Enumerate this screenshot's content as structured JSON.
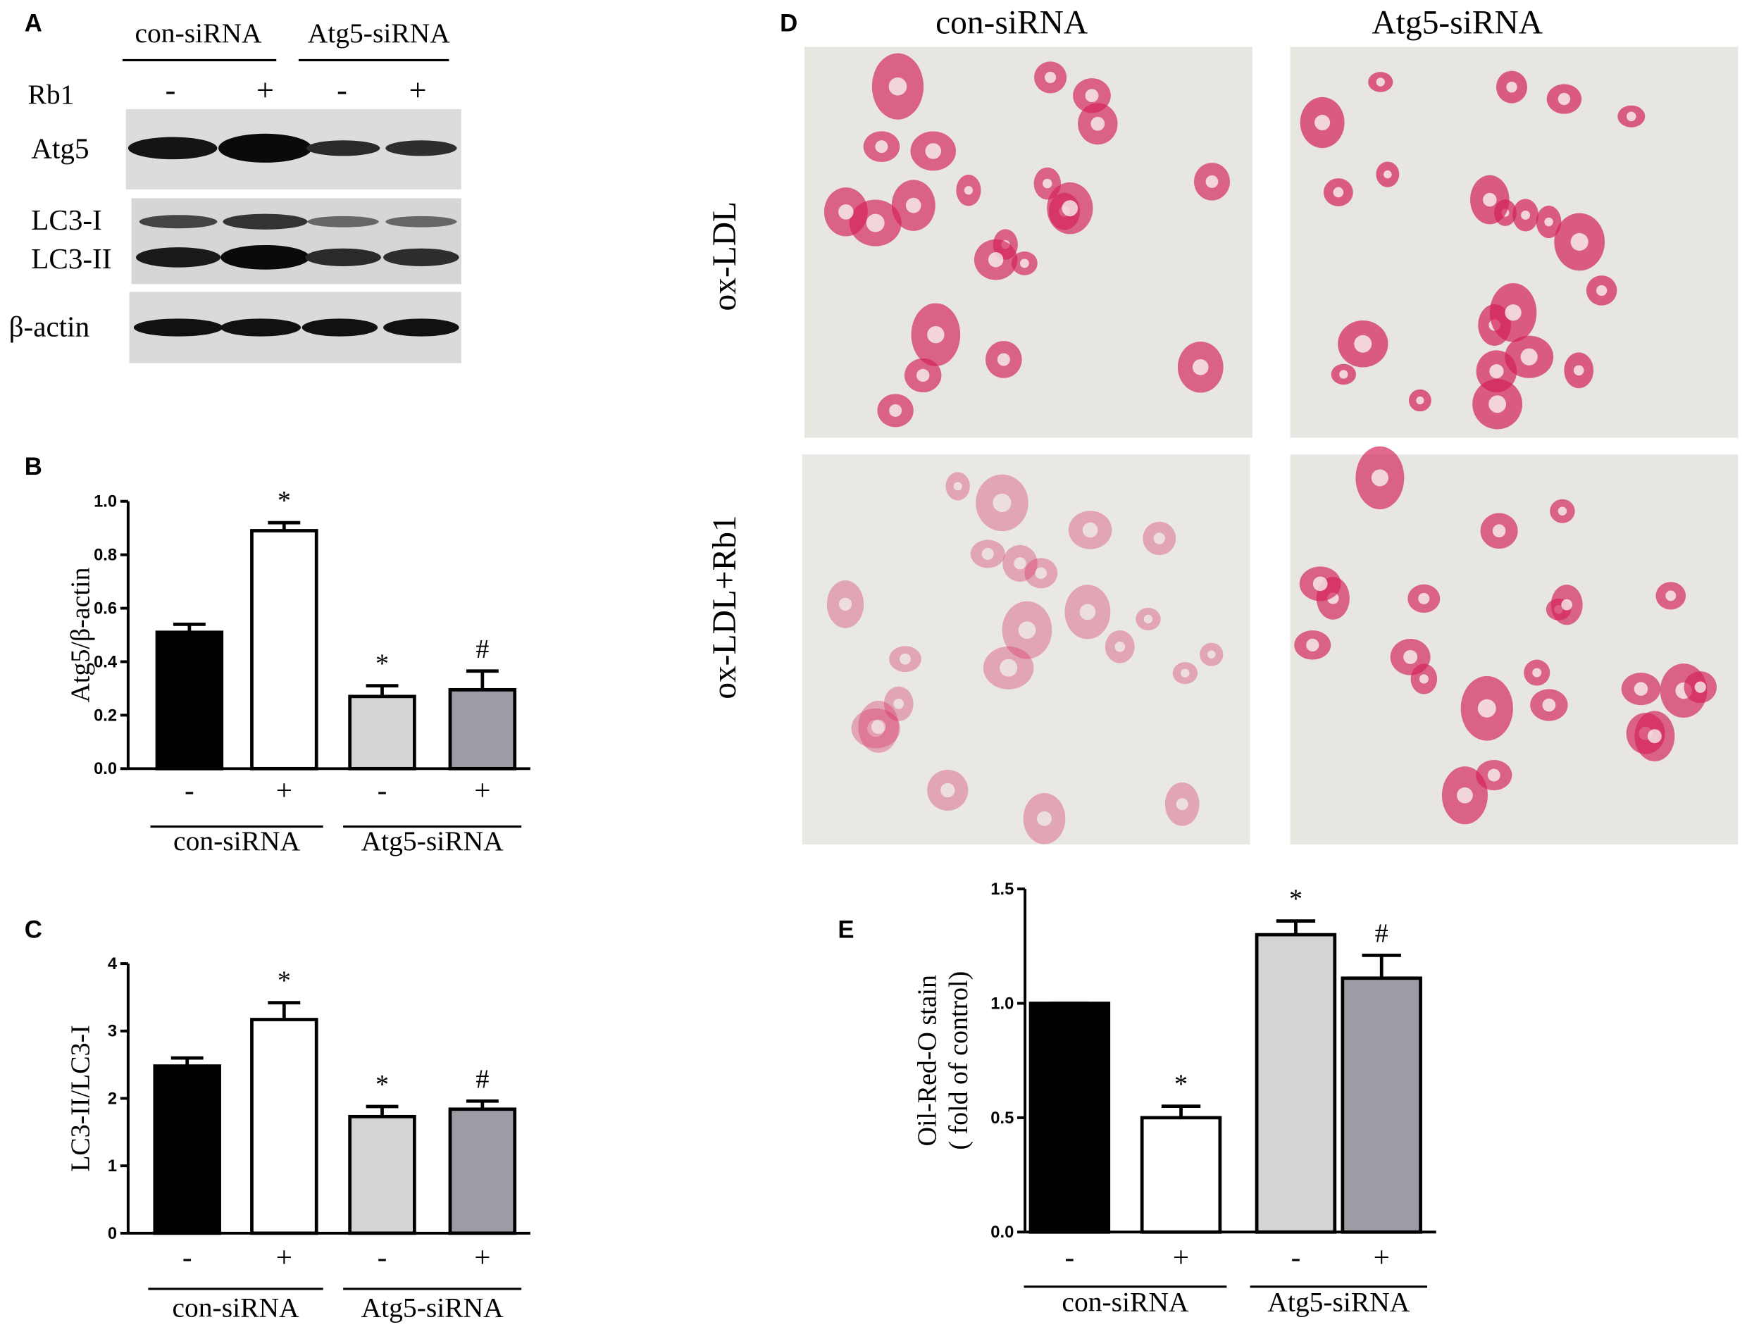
{
  "blot": {
    "panel": "A",
    "groups": [
      "con-siRNA",
      "Atg5-siRNA"
    ],
    "treatment": "Rb1",
    "signs": [
      "-",
      "+",
      "-",
      "+"
    ],
    "bands": [
      "Atg5",
      "LC3-I",
      "LC3-II",
      "β-actin"
    ]
  },
  "micrographs": {
    "panel": "D",
    "columns": [
      "con-siRNA",
      "Atg5-siRNA"
    ],
    "rows": [
      "ox-LDL",
      "ox-LDL+Rb1"
    ]
  },
  "chart_data": [
    {
      "type": "bar",
      "panel": "B",
      "y_label": "Atg5/β-actin",
      "categories": [
        "-",
        "+",
        "-",
        "+"
      ],
      "groups": [
        "con-siRNA",
        "Atg5-siRNA"
      ],
      "values": [
        0.51,
        0.89,
        0.27,
        0.295
      ],
      "errors": [
        0.03,
        0.03,
        0.04,
        0.07
      ],
      "annotations": [
        null,
        "*",
        "*",
        "#"
      ],
      "colors": [
        "#000000",
        "#ffffff",
        "#d4d4d4",
        "#9d9ca4"
      ],
      "ylim": [
        0,
        1.0
      ],
      "yticks": [
        {
          "value": 0,
          "label": "0.0"
        },
        0.2,
        0.4,
        0.6,
        0.8,
        {
          "value": 1,
          "label": "1.0"
        }
      ]
    },
    {
      "type": "bar",
      "panel": "C",
      "y_label": "LC3-II/LC3-I",
      "categories": [
        "-",
        "+",
        "-",
        "+"
      ],
      "groups": [
        "con-siRNA",
        "Atg5-siRNA"
      ],
      "values": [
        2.48,
        3.17,
        1.73,
        1.84
      ],
      "errors": [
        0.12,
        0.25,
        0.15,
        0.12
      ],
      "annotations": [
        null,
        "*",
        "*",
        "#"
      ],
      "colors": [
        "#000000",
        "#ffffff",
        "#d4d4d4",
        "#9d9ca4"
      ],
      "ylim": [
        0,
        4
      ],
      "yticks": [
        0,
        1,
        2,
        3,
        4
      ]
    },
    {
      "type": "bar",
      "panel": "E",
      "y_label": [
        "Oil-Red-O stain",
        "( fold of control)"
      ],
      "categories": [
        "-",
        "+",
        "-",
        "+"
      ],
      "groups": [
        "con-siRNA",
        "Atg5-siRNA"
      ],
      "values": [
        1.0,
        0.5,
        1.3,
        1.11
      ],
      "errors": [
        0,
        0.05,
        0.06,
        0.1
      ],
      "annotations": [
        null,
        "*",
        "*",
        "#"
      ],
      "colors": [
        "#000000",
        "#ffffff",
        "#d4d4d4",
        "#9d9ca4"
      ],
      "ylim": [
        0,
        1.5
      ],
      "yticks": [
        {
          "value": 0,
          "label": "0.0"
        },
        0.5,
        {
          "value": 1,
          "label": "1.0"
        },
        1.5
      ]
    }
  ]
}
